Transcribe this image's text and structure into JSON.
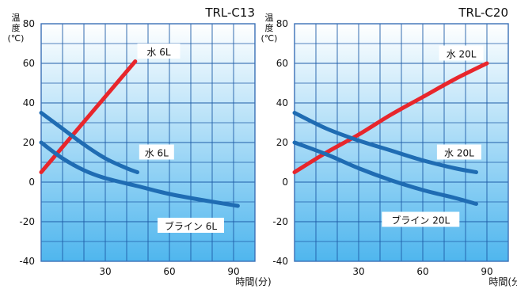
{
  "colors": {
    "grad_top": "#FFFFFF",
    "grad_bottom": "#4FB6EE",
    "grid": "#1F5DA8",
    "frame": "#3A70B7",
    "red_line": "#E8262C",
    "blue_line": "#1F6CB3",
    "text": "#111111"
  },
  "chart_data": [
    {
      "type": "line",
      "title": "TRL-C13",
      "ylabel": "温度(℃)",
      "xlabel": "時間(分)",
      "xlim": [
        0,
        100
      ],
      "ylim": [
        -40,
        80
      ],
      "xticks": [
        30,
        60,
        90
      ],
      "yticks": [
        80,
        60,
        40,
        20,
        0,
        -20,
        -40
      ],
      "series": [
        {
          "name": "水 6L",
          "color": "red",
          "x": [
            0,
            44
          ],
          "y": [
            5,
            61
          ]
        },
        {
          "name": "水 6L",
          "color": "blue",
          "x": [
            0,
            10,
            20,
            30,
            40,
            45
          ],
          "y": [
            35,
            27,
            19,
            12,
            7,
            5
          ]
        },
        {
          "name": "ブライン 6L",
          "color": "blue",
          "x": [
            0,
            10,
            20,
            30,
            45,
            60,
            75,
            92
          ],
          "y": [
            20,
            12,
            6,
            2,
            -2,
            -6,
            -9,
            -12
          ]
        }
      ],
      "labels": [
        {
          "text": "水 6L",
          "series": 0
        },
        {
          "text": "水 6L",
          "series": 1
        },
        {
          "text": "ブライン 6L",
          "series": 2
        }
      ]
    },
    {
      "type": "line",
      "title": "TRL-C20",
      "ylabel": "温度(℃)",
      "xlabel": "時間(分)",
      "xlim": [
        0,
        100
      ],
      "ylim": [
        -40,
        80
      ],
      "xticks": [
        30,
        60,
        90
      ],
      "yticks": [
        80,
        60,
        40,
        20,
        0,
        -20,
        -40
      ],
      "series": [
        {
          "name": "水 20L",
          "color": "red",
          "x": [
            0,
            15,
            30,
            45,
            60,
            75,
            90
          ],
          "y": [
            5,
            15,
            24,
            34,
            43,
            52,
            60
          ]
        },
        {
          "name": "水 20L",
          "color": "blue",
          "x": [
            0,
            15,
            30,
            45,
            60,
            75,
            85
          ],
          "y": [
            35,
            27,
            21,
            16,
            11,
            7,
            5
          ]
        },
        {
          "name": "ブライン 20L",
          "color": "blue",
          "x": [
            0,
            15,
            30,
            45,
            60,
            75,
            85
          ],
          "y": [
            20,
            14,
            7,
            1,
            -4,
            -8,
            -11
          ]
        }
      ],
      "labels": [
        {
          "text": "水 20L",
          "series": 0
        },
        {
          "text": "水 20L",
          "series": 1
        },
        {
          "text": "ブライン 20L",
          "series": 2
        }
      ]
    }
  ]
}
